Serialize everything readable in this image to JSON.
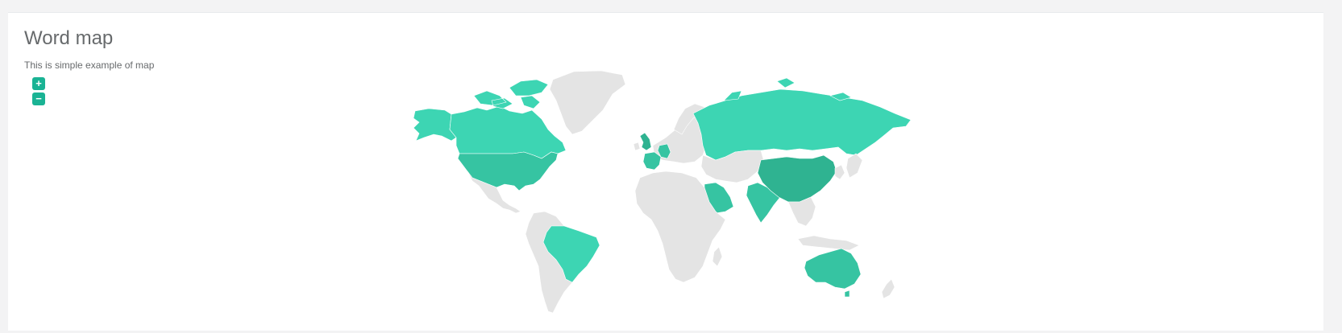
{
  "panel": {
    "title": "Word map",
    "subtitle": "This is simple example of map"
  },
  "controls": {
    "zoom_in_label": "+",
    "zoom_out_label": "−"
  },
  "colors": {
    "page_background": "#f3f3f4",
    "panel_background": "#ffffff",
    "unselected_country": "#e4e4e4",
    "highlight_light": "#3dd5b3",
    "highlight_medium": "#36c4a2",
    "highlight_dark": "#2fb391",
    "button": "#1ab394"
  },
  "map": {
    "type": "world choropleth",
    "highlighted_regions": [
      "Canada",
      "Greenland-none",
      "United States",
      "Brazil",
      "United Kingdom",
      "Germany",
      "France",
      "Russia",
      "Saudi Arabia",
      "India",
      "China",
      "Australia"
    ]
  }
}
